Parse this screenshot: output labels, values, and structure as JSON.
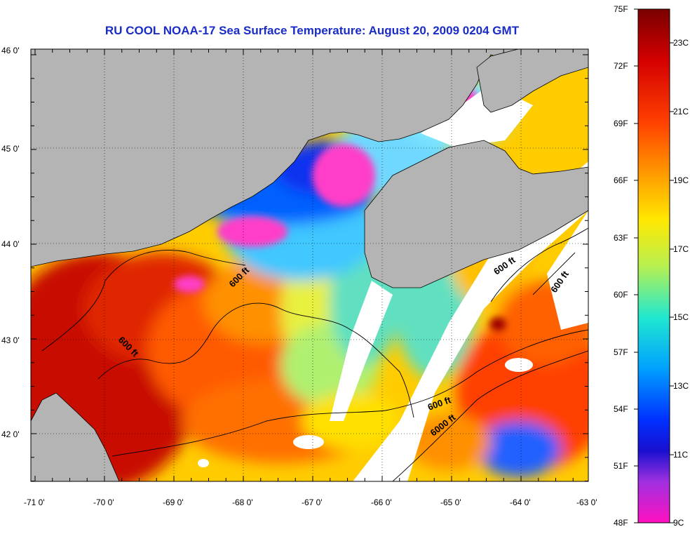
{
  "title": "RU COOL  NOAA-17  Sea Surface Temperature:  August 20, 2009 0204 GMT",
  "axes": {
    "lat_labels": [
      "46 0'",
      "45 0'",
      "44 0'",
      "43 0'",
      "42 0'"
    ],
    "lon_labels": [
      "-71 0'",
      "-70 0'",
      "-69 0'",
      "-68 0'",
      "-67 0'",
      "-66 0'",
      "-65 0'",
      "-64 0'",
      "-63 0'"
    ]
  },
  "contour_labels": [
    "600 ft",
    "600 ft",
    "600 ft",
    "600 ft",
    "600 ft",
    "6000 ft"
  ],
  "colorbar": {
    "fahrenheit_labels": [
      "75F",
      "72F",
      "69F",
      "66F",
      "63F",
      "60F",
      "57F",
      "54F",
      "51F",
      "48F"
    ],
    "celsius_labels": [
      "23C",
      "21C",
      "19C",
      "17C",
      "15C",
      "13C",
      "11C",
      "9C"
    ]
  },
  "colors": {
    "land": "#b4b4b4",
    "cloud": "#ffffff",
    "title": "#1a2cc7"
  }
}
